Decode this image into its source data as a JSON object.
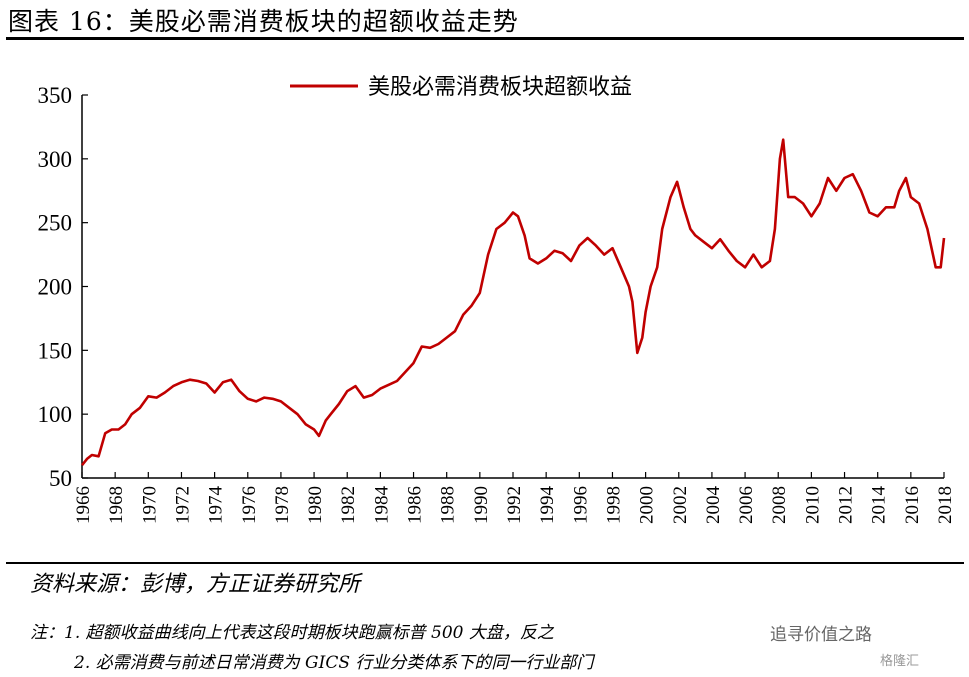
{
  "figure": {
    "title": "图表 16：美股必需消费板块的超额收益走势",
    "source": "资料来源：彭博，方正证券研究所",
    "notes": [
      "注：1. 超额收益曲线向上代表这段时期板块跑赢标普 500 大盘，反之",
      "2. 必需消费与前述日常消费为 GICS 行业分类体系下的同一行业部门"
    ],
    "watermarks": [
      "追寻价值之路",
      "格隆汇"
    ]
  },
  "colors": {
    "series": "#c00000",
    "axis": "#000000"
  },
  "chart_data": {
    "type": "line",
    "title": "",
    "xlabel": "",
    "ylabel": "",
    "ylim": [
      50,
      350
    ],
    "yticks": [
      50,
      100,
      150,
      200,
      250,
      300,
      350
    ],
    "xlim": [
      1966,
      2018
    ],
    "xticks": [
      "1966",
      "1968",
      "1970",
      "1972",
      "1974",
      "1976",
      "1978",
      "1980",
      "1982",
      "1984",
      "1986",
      "1988",
      "1990",
      "1992",
      "1994",
      "1996",
      "1998",
      "2000",
      "2002",
      "2004",
      "2006",
      "2008",
      "2010",
      "2012",
      "2014",
      "2016",
      "2018"
    ],
    "grid": false,
    "legend_position": "top-center",
    "series": [
      {
        "name": "美股必需消费板块超额收益",
        "x": [
          1966,
          1966.3,
          1966.6,
          1967,
          1967.4,
          1967.8,
          1968.2,
          1968.6,
          1969,
          1969.5,
          1970,
          1970.5,
          1971,
          1971.5,
          1972,
          1972.5,
          1973,
          1973.5,
          1974,
          1974.5,
          1975,
          1975.5,
          1976,
          1976.5,
          1977,
          1977.5,
          1978,
          1978.5,
          1979,
          1979.5,
          1980,
          1980.3,
          1980.7,
          1981,
          1981.5,
          1982,
          1982.5,
          1983,
          1983.5,
          1984,
          1984.5,
          1985,
          1985.5,
          1986,
          1986.5,
          1987,
          1987.5,
          1988,
          1988.5,
          1989,
          1989.5,
          1990,
          1990.5,
          1991,
          1991.5,
          1992,
          1992.3,
          1992.7,
          1993,
          1993.5,
          1994,
          1994.5,
          1995,
          1995.5,
          1996,
          1996.5,
          1997,
          1997.5,
          1998,
          1998.5,
          1999,
          1999.2,
          1999.5,
          1999.8,
          2000,
          2000.3,
          2000.7,
          2001,
          2001.5,
          2001.9,
          2002.3,
          2002.7,
          2003,
          2003.5,
          2004,
          2004.5,
          2005,
          2005.5,
          2006,
          2006.5,
          2007,
          2007.5,
          2007.8,
          2008.1,
          2008.3,
          2008.6,
          2009,
          2009.5,
          2010,
          2010.5,
          2011,
          2011.5,
          2012,
          2012.5,
          2013,
          2013.5,
          2014,
          2014.5,
          2015,
          2015.3,
          2015.7,
          2016,
          2016.5,
          2017,
          2017.5,
          2017.8,
          2018
        ],
        "values": [
          60,
          65,
          68,
          67,
          85,
          88,
          88,
          92,
          100,
          105,
          114,
          113,
          117,
          122,
          125,
          127,
          126,
          124,
          117,
          125,
          127,
          118,
          112,
          110,
          113,
          112,
          110,
          105,
          100,
          92,
          88,
          83,
          95,
          100,
          108,
          118,
          122,
          113,
          115,
          120,
          123,
          126,
          133,
          140,
          153,
          152,
          155,
          160,
          165,
          178,
          185,
          195,
          225,
          245,
          250,
          258,
          255,
          240,
          222,
          218,
          222,
          228,
          226,
          220,
          232,
          238,
          232,
          225,
          230,
          215,
          200,
          188,
          148,
          160,
          180,
          200,
          215,
          245,
          270,
          282,
          262,
          245,
          240,
          235,
          230,
          237,
          228,
          220,
          215,
          225,
          215,
          220,
          245,
          300,
          315,
          270,
          270,
          265,
          255,
          265,
          285,
          275,
          285,
          288,
          275,
          258,
          255,
          262,
          262,
          275,
          285,
          270,
          265,
          245,
          215,
          215,
          238
        ]
      }
    ]
  }
}
